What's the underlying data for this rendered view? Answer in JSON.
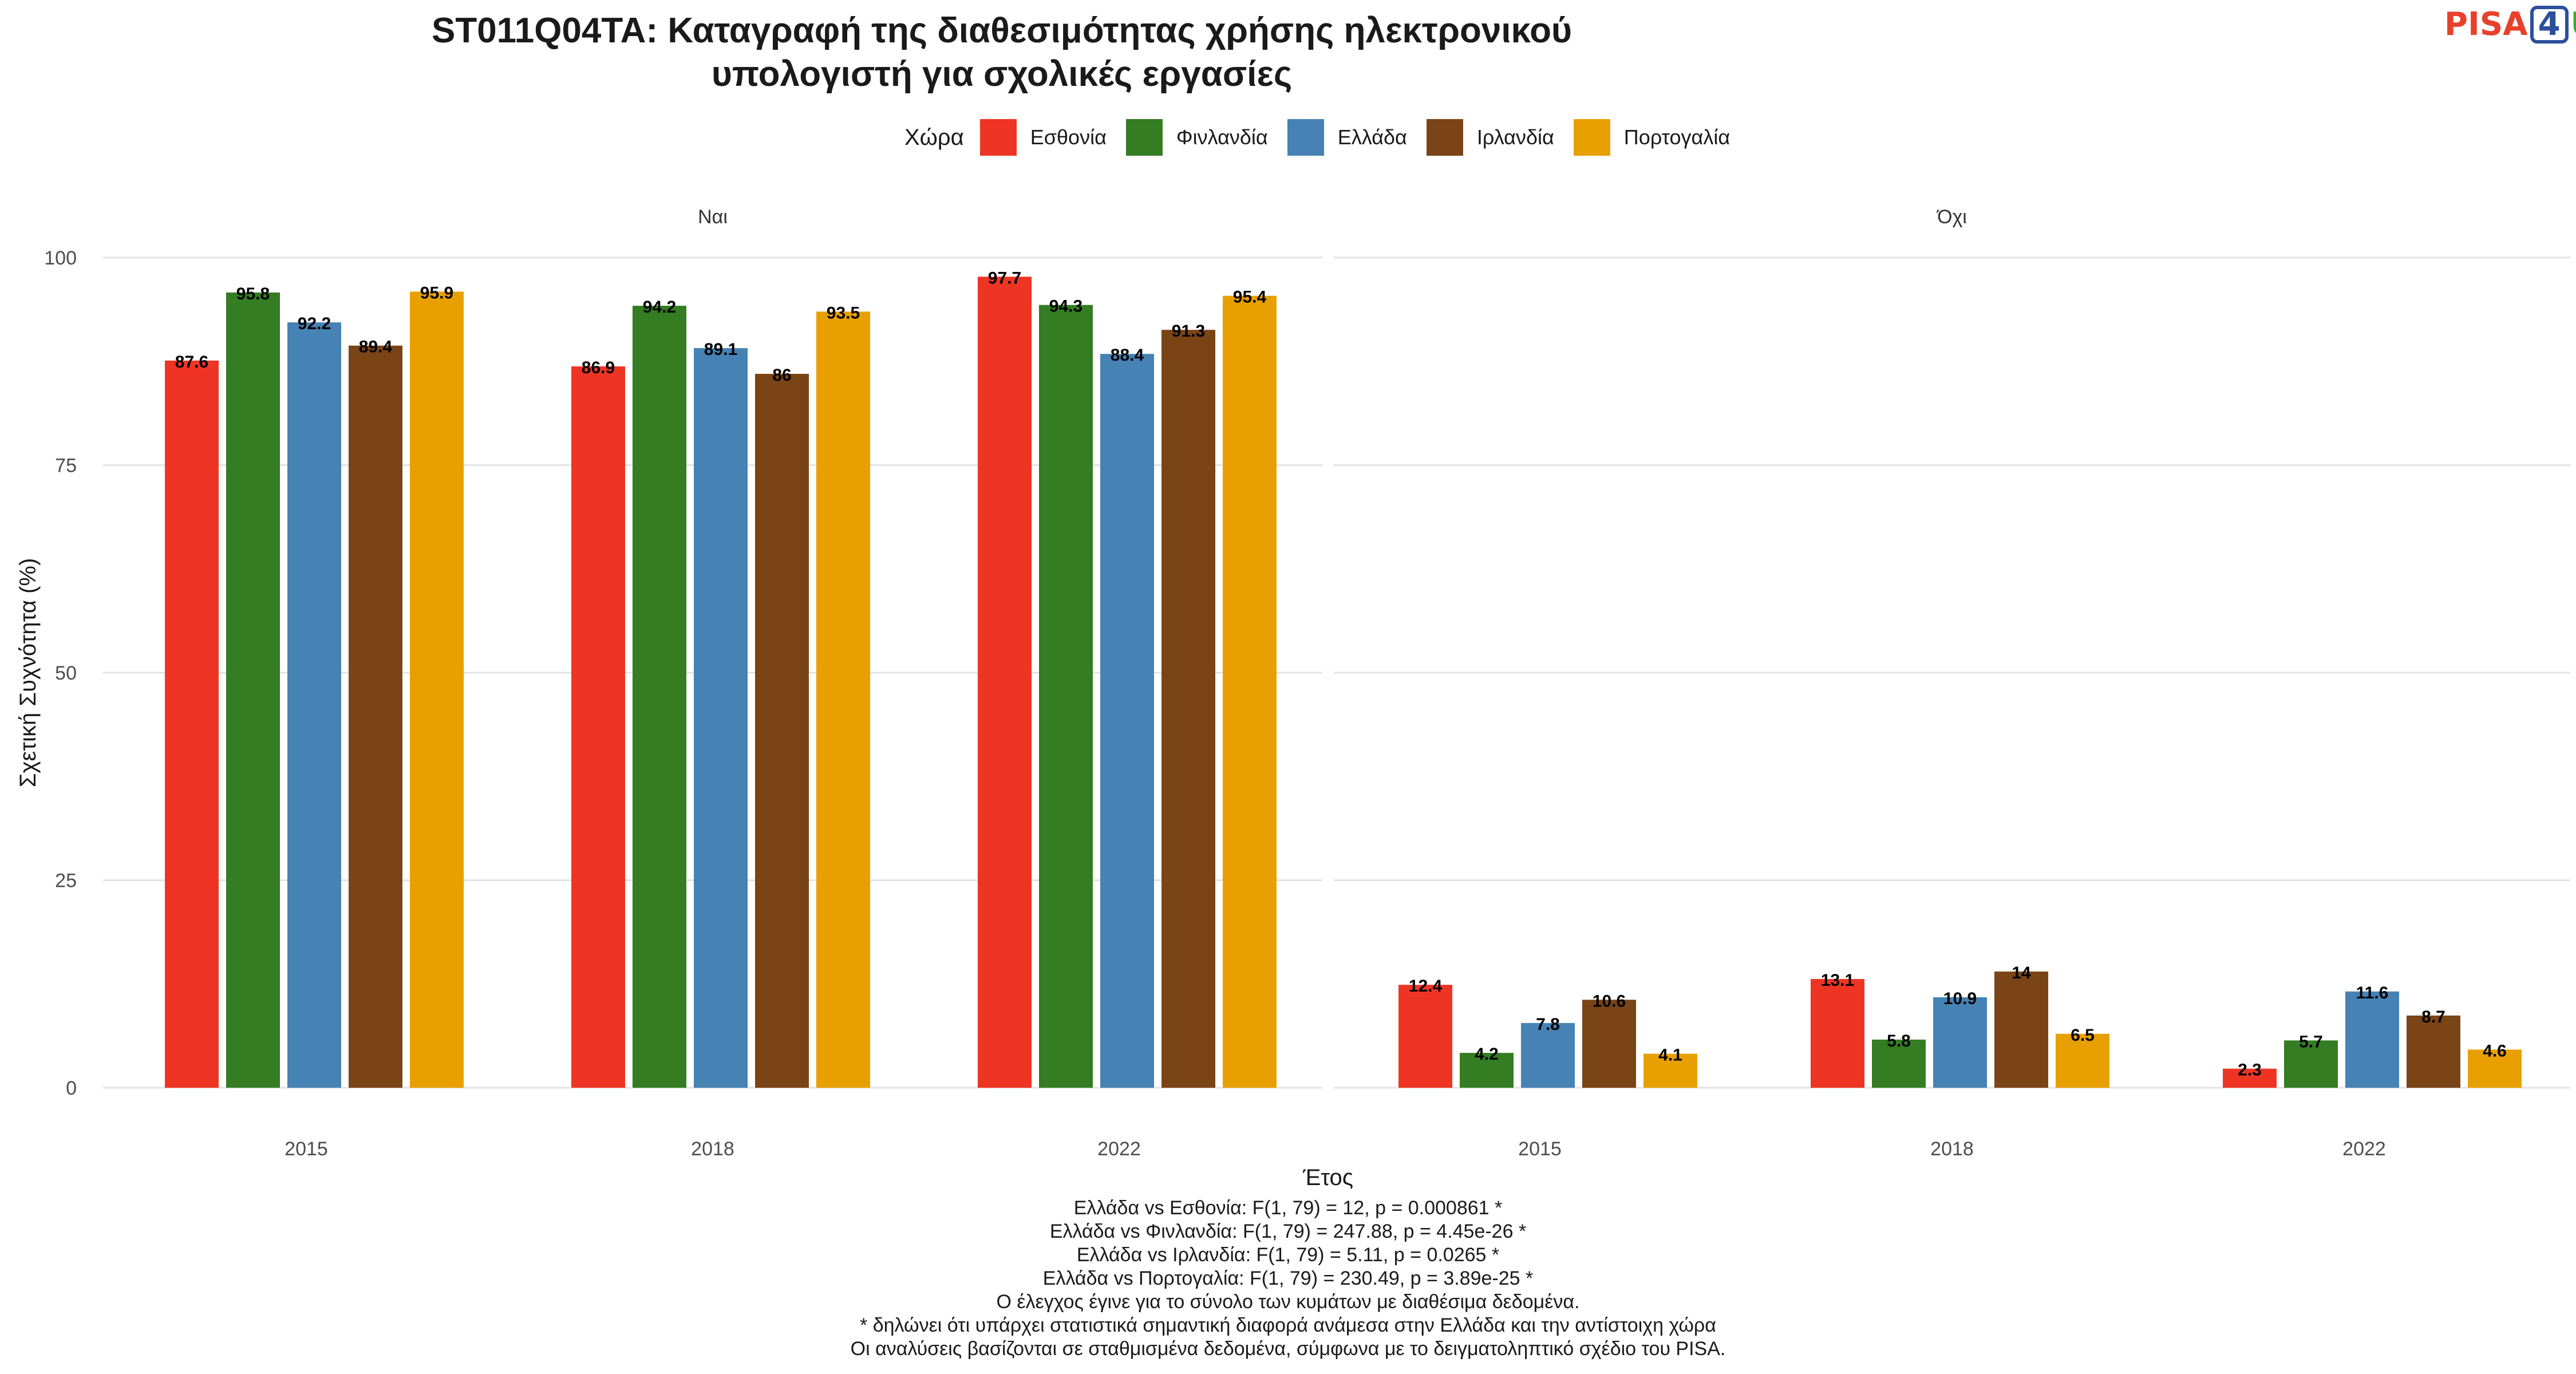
{
  "chart_data": {
    "type": "bar",
    "title": "ST011Q04TA: Καταγραφή της διαθεσιμότητας χρήσης ηλεκτρονικού υπολογιστή για σχολικές εργασίες",
    "title_lines": [
      "ST011Q04TA: Καταγραφή της διαθεσιμότητας χρήσης ηλεκτρονικού",
      "υπολογιστή για σχολικές εργασίες"
    ],
    "xlabel": "Έτος",
    "ylabel": "Σχετική Συχνότητα (%)",
    "ylim": [
      0,
      100
    ],
    "yticks": [
      0,
      25,
      50,
      75,
      100
    ],
    "grid": true,
    "legend_position": "top",
    "legend_title": "Χώρα",
    "categories": [
      "2015",
      "2018",
      "2022"
    ],
    "series_names": [
      "Εσθονία",
      "Φινλανδία",
      "Ελλάδα",
      "Ιρλανδία",
      "Πορτογαλία"
    ],
    "colors": [
      "#ee3524",
      "#347d22",
      "#4682b4",
      "#7a4417",
      "#e8a000"
    ],
    "panels": [
      {
        "name": "Ναι",
        "series": [
          {
            "name": "Εσθονία",
            "values": [
              87.6,
              86.9,
              97.7
            ]
          },
          {
            "name": "Φινλανδία",
            "values": [
              95.8,
              94.2,
              94.3
            ]
          },
          {
            "name": "Ελλάδα",
            "values": [
              92.2,
              89.1,
              88.4
            ]
          },
          {
            "name": "Ιρλανδία",
            "values": [
              89.4,
              86,
              91.3
            ]
          },
          {
            "name": "Πορτογαλία",
            "values": [
              95.9,
              93.5,
              95.4
            ]
          }
        ]
      },
      {
        "name": "Όχι",
        "series": [
          {
            "name": "Εσθονία",
            "values": [
              12.4,
              13.1,
              2.3
            ]
          },
          {
            "name": "Φινλανδία",
            "values": [
              4.2,
              5.8,
              5.7
            ]
          },
          {
            "name": "Ελλάδα",
            "values": [
              7.8,
              10.9,
              11.6
            ]
          },
          {
            "name": "Ιρλανδία",
            "values": [
              10.6,
              14,
              8.7
            ]
          },
          {
            "name": "Πορτογαλία",
            "values": [
              4.1,
              6.5,
              4.6
            ]
          }
        ]
      }
    ]
  },
  "logo": {
    "part1": "PISA",
    "part2": "4",
    "part3": "U"
  },
  "footnotes": [
    "Ελλάδα vs Εσθονία: F(1, 79) = 12, p = 0.000861 *",
    "Ελλάδα vs Φινλανδία: F(1, 79) = 247.88, p = 4.45e-26 *",
    "Ελλάδα vs Ιρλανδία: F(1, 79) = 5.11, p = 0.0265 *",
    "Ελλάδα vs Πορτογαλία: F(1, 79) = 230.49, p = 3.89e-25 *",
    "Ο έλεγχος έγινε για το σύνολο των κυμάτων με διαθέσιμα δεδομένα.",
    "* δηλώνει ότι υπάρχει στατιστικά σημαντική διαφορά ανάμεσα στην Ελλάδα και την αντίστοιχη χώρα",
    "Οι αναλύσεις βασίζονται σε σταθμισμένα δεδομένα, σύμφωνα με το δειγματοληπτικό σχέδιο του PISA."
  ]
}
